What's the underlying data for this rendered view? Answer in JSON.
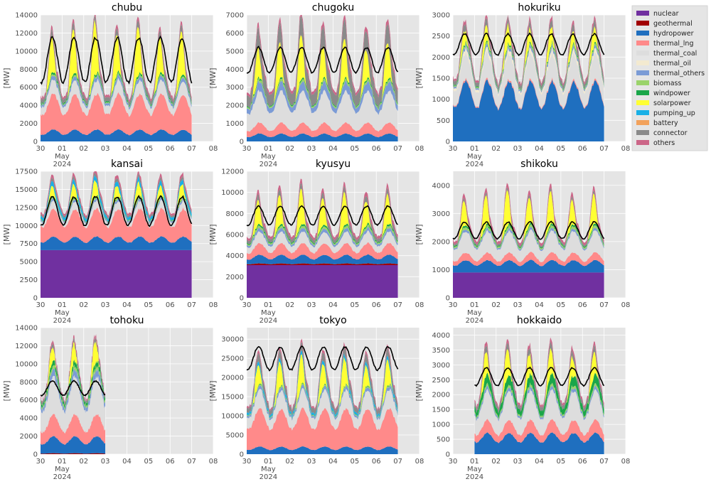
{
  "legend": [
    {
      "name": "nuclear",
      "color": "#7030a0"
    },
    {
      "name": "geothermal",
      "color": "#a10000"
    },
    {
      "name": "hydropower",
      "color": "#1f6fbf"
    },
    {
      "name": "thermal_lng",
      "color": "#ff8a8a"
    },
    {
      "name": "thermal_coal",
      "color": "#dddddd"
    },
    {
      "name": "thermal_oil",
      "color": "#f3ead0"
    },
    {
      "name": "thermal_others",
      "color": "#7b9bd6"
    },
    {
      "name": "biomass",
      "color": "#9bd36b"
    },
    {
      "name": "windpower",
      "color": "#1aa64a"
    },
    {
      "name": "solarpower",
      "color": "#ffff33"
    },
    {
      "name": "pumping_up",
      "color": "#19b0e6"
    },
    {
      "name": "battery",
      "color": "#f2a25c"
    },
    {
      "name": "connector",
      "color": "#8a8a8a"
    },
    {
      "name": "others",
      "color": "#cc6688"
    }
  ],
  "x_tick_labels": [
    "30",
    "01",
    "02",
    "03",
    "04",
    "05",
    "06",
    "07",
    "08"
  ],
  "x_sub_labels": {
    "month": "May",
    "year": "2024"
  },
  "ylabel": "[MW]",
  "chart_data": [
    {
      "type": "area",
      "title": "chubu",
      "ylim": [
        0,
        14000
      ],
      "yticks": [
        0,
        2000,
        4000,
        6000,
        8000,
        10000,
        12000,
        14000
      ],
      "series": {
        "nuclear": 0,
        "hydropower": 1200,
        "thermal_lng": 3600,
        "thermal_coal": 1400,
        "thermal_others": 400,
        "biomass": 150,
        "windpower": 200,
        "connector": 700,
        "others": 400
      },
      "solar_peak": 5500,
      "demand": {
        "base": 9000,
        "amp": 2500
      },
      "end_day": 7,
      "start_day": 0
    },
    {
      "type": "area",
      "title": "chugoku",
      "ylim": [
        0,
        7000
      ],
      "yticks": [
        0,
        1000,
        2000,
        3000,
        4000,
        5000,
        6000,
        7000
      ],
      "series": {
        "nuclear": 0,
        "hydropower": 400,
        "thermal_lng": 550,
        "thermal_coal": 1600,
        "thermal_others": 450,
        "biomass": 120,
        "windpower": 80,
        "connector": 1000,
        "others": 250
      },
      "solar_peak": 2300,
      "demand": {
        "base": 4500,
        "amp": 700
      },
      "end_day": 7,
      "start_day": 0
    },
    {
      "type": "area",
      "title": "hokuriku",
      "ylim": [
        0,
        3000
      ],
      "yticks": [
        0,
        500,
        1000,
        1500,
        2000,
        2500,
        3000
      ],
      "series": {
        "nuclear": 0,
        "hydropower": 1300,
        "thermal_lng": 40,
        "thermal_coal": 550,
        "thermal_oil": 100,
        "thermal_others": 60,
        "biomass": 40,
        "windpower": 30,
        "connector": 150,
        "others": 80
      },
      "solar_peak": 450,
      "demand": {
        "base": 2300,
        "amp": 250
      },
      "end_day": 7,
      "start_day": 0
    },
    {
      "type": "area",
      "title": "kansai",
      "ylim": [
        0,
        17500
      ],
      "yticks": [
        0,
        2500,
        5000,
        7500,
        10000,
        12500,
        15000,
        17500
      ],
      "series": {
        "nuclear": 6600,
        "hydropower": 1700,
        "thermal_lng": 3500,
        "thermal_coal": 1000,
        "thermal_others": 300,
        "biomass": 150,
        "windpower": 100,
        "pumping_up": 600,
        "connector": 400,
        "others": 450
      },
      "solar_peak": 2200,
      "demand": {
        "base": 12000,
        "amp": 2000
      },
      "end_day": 7,
      "start_day": 0
    },
    {
      "type": "area",
      "title": "kyusyu",
      "ylim": [
        0,
        12000
      ],
      "yticks": [
        0,
        2000,
        4000,
        6000,
        8000,
        10000,
        12000
      ],
      "series": {
        "nuclear": 3100,
        "geothermal": 150,
        "hydropower": 750,
        "thermal_lng": 1000,
        "thermal_coal": 1000,
        "thermal_others": 300,
        "biomass": 200,
        "windpower": 150,
        "connector": 500,
        "others": 400
      },
      "solar_peak": 3200,
      "demand": {
        "base": 7800,
        "amp": 900
      },
      "end_day": 7,
      "start_day": 0
    },
    {
      "type": "area",
      "title": "shikoku",
      "ylim": [
        0,
        4500
      ],
      "yticks": [
        0,
        1000,
        2000,
        3000,
        4000
      ],
      "series": {
        "nuclear": 900,
        "hydropower": 400,
        "thermal_lng": 250,
        "thermal_coal": 700,
        "thermal_others": 80,
        "biomass": 80,
        "windpower": 60,
        "connector": 100,
        "others": 150
      },
      "solar_peak": 1200,
      "demand": {
        "base": 2400,
        "amp": 300
      },
      "end_day": 7,
      "start_day": 0
    },
    {
      "type": "area",
      "title": "tohoku",
      "ylim": [
        0,
        14000
      ],
      "yticks": [
        0,
        2000,
        4000,
        6000,
        8000,
        10000,
        12000,
        14000
      ],
      "series": {
        "nuclear": 0,
        "geothermal": 100,
        "hydropower": 1700,
        "thermal_lng": 2200,
        "thermal_coal": 3800,
        "thermal_others": 700,
        "biomass": 350,
        "windpower": 500,
        "connector": 400,
        "others": 300
      },
      "solar_peak": 2300,
      "demand": {
        "base": 7300,
        "amp": 800
      },
      "end_day": 3,
      "start_day": 0
    },
    {
      "type": "area",
      "title": "tokyo",
      "ylim": [
        0,
        33000
      ],
      "yticks": [
        0,
        5000,
        10000,
        15000,
        20000,
        25000,
        30000
      ],
      "series": {
        "nuclear": 0,
        "hydropower": 1800,
        "thermal_lng": 9000,
        "thermal_coal": 4500,
        "thermal_others": 800,
        "biomass": 300,
        "windpower": 150,
        "pumping_up": 900,
        "connector": 2000,
        "others": 700
      },
      "solar_peak": 7500,
      "demand": {
        "base": 25000,
        "amp": 3000
      },
      "end_day": 7,
      "start_day": 0
    },
    {
      "type": "area",
      "title": "hokkaido",
      "ylim": [
        0,
        4250
      ],
      "yticks": [
        0,
        500,
        1000,
        1500,
        2000,
        2500,
        3000,
        3500,
        4000
      ],
      "series": {
        "nuclear": 0,
        "hydropower": 650,
        "thermal_lng": 400,
        "thermal_coal": 900,
        "thermal_others": 100,
        "biomass": 80,
        "windpower": 300,
        "connector": 200,
        "others": 120
      },
      "solar_peak": 900,
      "demand": {
        "base": 2600,
        "amp": 300
      },
      "end_day": 7,
      "start_day": 1
    }
  ]
}
